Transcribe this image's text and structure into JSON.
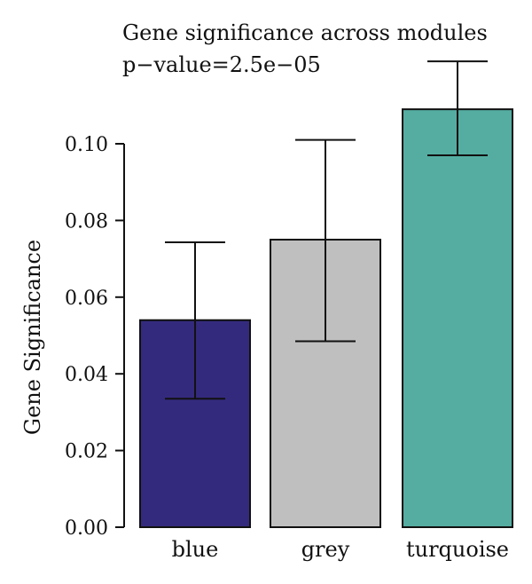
{
  "chart_data": {
    "type": "bar",
    "title": "Gene significance across modules",
    "subtitle": "p−value=2.5e−05",
    "xlabel": "",
    "ylabel": "Gene Significance",
    "categories": [
      "blue",
      "grey",
      "turquoise"
    ],
    "values": [
      0.054,
      0.075,
      0.109
    ],
    "error_low": [
      0.0335,
      0.0485,
      0.097
    ],
    "error_high": [
      0.0743,
      0.101,
      0.1215
    ],
    "colors": [
      "#342a7d",
      "#bfbfbf",
      "#55ada1"
    ],
    "ylim": [
      0,
      0.1
    ],
    "yticks": [
      0.0,
      0.02,
      0.04,
      0.06,
      0.08,
      0.1
    ],
    "ytick_labels": [
      "0.00",
      "0.02",
      "0.04",
      "0.06",
      "0.08",
      "0.10"
    ],
    "grid": false,
    "legend": "none"
  }
}
